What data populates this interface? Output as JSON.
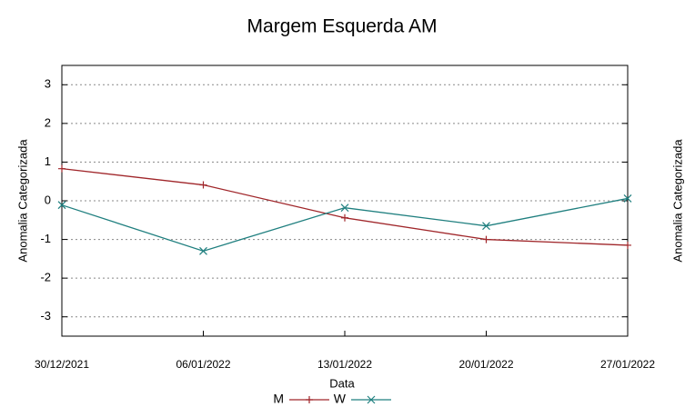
{
  "chart_data": {
    "type": "line",
    "title": "Margem Esquerda AM",
    "x_label": "Data",
    "y_label": "Anomalia Categorizada",
    "categories": [
      "30/12/2021",
      "06/01/2022",
      "13/01/2022",
      "20/01/2022",
      "27/01/2022"
    ],
    "series": [
      {
        "name": "M",
        "color": "#a0262a",
        "marker": "plus",
        "values": [
          0.83,
          0.41,
          -0.44,
          -1.0,
          -1.15
        ]
      },
      {
        "name": "W",
        "color": "#1f7f7f",
        "marker": "cross",
        "values": [
          -0.11,
          -1.3,
          -0.18,
          -0.65,
          0.06
        ]
      }
    ],
    "ylim": [
      -3.5,
      3.5
    ],
    "yticks": [
      -3,
      -2,
      -1,
      0,
      1,
      2,
      3
    ],
    "grid": true
  }
}
